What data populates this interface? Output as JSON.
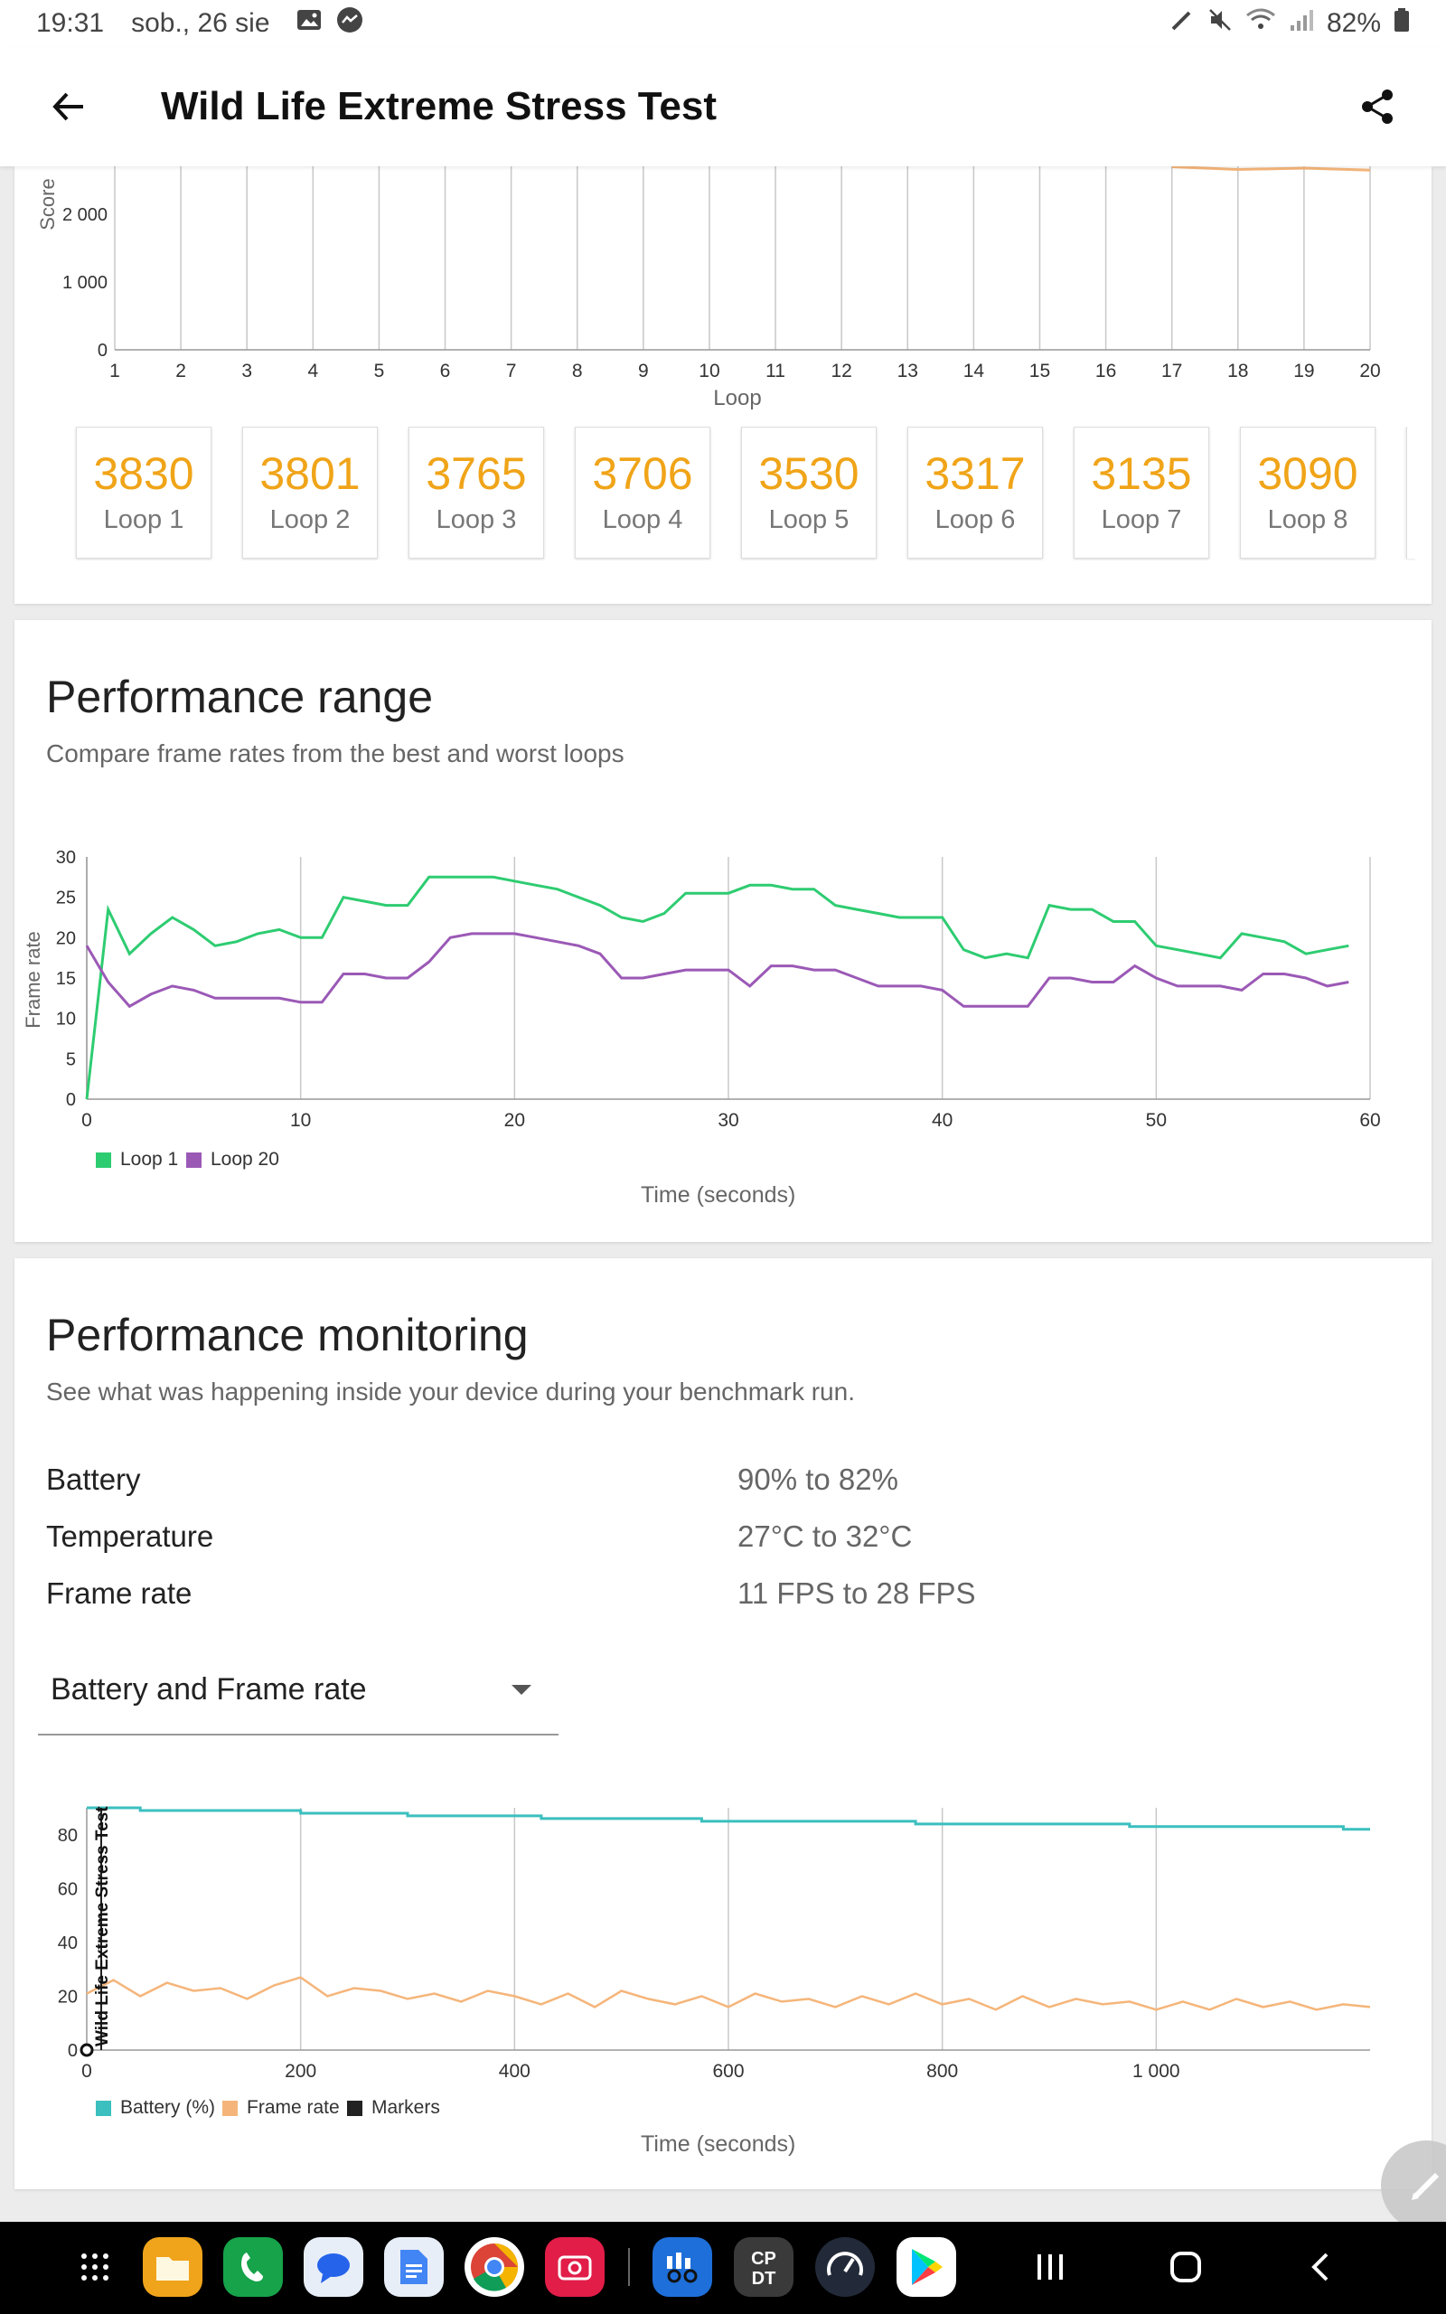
{
  "status_bar": {
    "time": "19:31",
    "date": "sob., 26 sie",
    "battery": "82%"
  },
  "app_bar": {
    "title": "Wild Life Extreme Stress Test"
  },
  "score_chart": {
    "y_ticks": [
      "0",
      "1 000",
      "2 000"
    ],
    "ylabel": "Score",
    "xlabel": "Loop",
    "x_ticks": [
      "1",
      "2",
      "3",
      "4",
      "5",
      "6",
      "7",
      "8",
      "9",
      "10",
      "11",
      "12",
      "13",
      "14",
      "15",
      "16",
      "17",
      "18",
      "19",
      "20"
    ]
  },
  "loops": [
    {
      "score": "3830",
      "label": "Loop 1"
    },
    {
      "score": "3801",
      "label": "Loop 2"
    },
    {
      "score": "3765",
      "label": "Loop 3"
    },
    {
      "score": "3706",
      "label": "Loop 4"
    },
    {
      "score": "3530",
      "label": "Loop 5"
    },
    {
      "score": "3317",
      "label": "Loop 6"
    },
    {
      "score": "3135",
      "label": "Loop 7"
    },
    {
      "score": "3090",
      "label": "Loop 8"
    }
  ],
  "performance_range": {
    "title": "Performance range",
    "subtitle": "Compare frame rates from the best and worst loops",
    "ylabel": "Frame rate",
    "xlabel": "Time (seconds)",
    "y_ticks": [
      "0",
      "5",
      "10",
      "15",
      "20",
      "25",
      "30"
    ],
    "x_ticks": [
      "0",
      "10",
      "20",
      "30",
      "40",
      "50",
      "60"
    ],
    "legend": [
      "Loop 1",
      "Loop 20"
    ]
  },
  "performance_monitoring": {
    "title": "Performance monitoring",
    "subtitle": "See what was happening inside your device during your benchmark run.",
    "rows": [
      {
        "label": "Battery",
        "value": "90% to 82%"
      },
      {
        "label": "Temperature",
        "value": "27°C to 32°C"
      },
      {
        "label": "Frame rate",
        "value": "11 FPS to 28 FPS"
      }
    ],
    "dropdown_value": "Battery and Frame rate",
    "chart": {
      "y_ticks": [
        "0",
        "20",
        "40",
        "60",
        "80"
      ],
      "x_ticks": [
        "0",
        "200",
        "400",
        "600",
        "800",
        "1 000"
      ],
      "marker_label": "Wild Life Extreme Stress Test",
      "legend": [
        "Battery (%)",
        "Frame rate",
        "Markers"
      ],
      "xlabel": "Time (seconds)"
    }
  },
  "colors": {
    "accent_orange": "#f0a418",
    "loop1": "#2ecc71",
    "loop20": "#9b59b6",
    "battery": "#3bbfbf",
    "framerate": "#f5b57a",
    "markers": "#222222"
  },
  "dock_apps": [
    "apps-grid-icon",
    "files-icon",
    "phone-icon",
    "messages-icon",
    "docs-icon",
    "chrome-icon",
    "camera-icon",
    "benchmark-icon",
    "cpu-dt-icon",
    "speedometer-icon",
    "play-store-icon"
  ],
  "chart_data": [
    {
      "type": "line",
      "title": "",
      "xlabel": "Loop",
      "ylabel": "Score",
      "x": [
        17,
        18,
        19,
        20
      ],
      "series": [
        {
          "values": [
            2700,
            2660,
            2680,
            2650
          ]
        }
      ],
      "ylim": [
        0,
        3000
      ]
    },
    {
      "type": "line",
      "title": "Performance range",
      "xlabel": "Time (seconds)",
      "ylabel": "Frame rate",
      "xlim": [
        0,
        60
      ],
      "ylim": [
        0,
        30
      ],
      "x": [
        0,
        1,
        2,
        3,
        4,
        5,
        6,
        7,
        8,
        9,
        10,
        11,
        12,
        13,
        14,
        15,
        16,
        17,
        18,
        19,
        20,
        21,
        22,
        23,
        24,
        25,
        26,
        27,
        28,
        29,
        30,
        31,
        32,
        33,
        34,
        35,
        36,
        37,
        38,
        39,
        40,
        41,
        42,
        43,
        44,
        45,
        46,
        47,
        48,
        49,
        50,
        51,
        52,
        53,
        54,
        55,
        56,
        57,
        58,
        59
      ],
      "series": [
        {
          "name": "Loop 1",
          "values": [
            0,
            23.5,
            18,
            20.5,
            22.5,
            21,
            19,
            19.5,
            20.5,
            21,
            20,
            20,
            25,
            24.5,
            24,
            24,
            27.5,
            27.5,
            27.5,
            27.5,
            27,
            26.5,
            26,
            25,
            24,
            22.5,
            22,
            23,
            25.5,
            25.5,
            25.5,
            26.5,
            26.5,
            26,
            26,
            24,
            23.5,
            23,
            22.5,
            22.5,
            22.5,
            18.5,
            17.5,
            18,
            17.5,
            24,
            23.5,
            23.5,
            22,
            22,
            19,
            18.5,
            18,
            17.5,
            20.5,
            20,
            19.5,
            18,
            18.5,
            19
          ]
        },
        {
          "name": "Loop 20",
          "values": [
            19,
            14.5,
            11.5,
            13,
            14,
            13.5,
            12.5,
            12.5,
            12.5,
            12.5,
            12,
            12,
            15.5,
            15.5,
            15,
            15,
            17,
            20,
            20.5,
            20.5,
            20.5,
            20,
            19.5,
            19,
            18,
            15,
            15,
            15.5,
            16,
            16,
            16,
            14,
            16.5,
            16.5,
            16,
            16,
            15,
            14,
            14,
            14,
            13.5,
            11.5,
            11.5,
            11.5,
            11.5,
            15,
            15,
            14.5,
            14.5,
            16.5,
            15,
            14,
            14,
            14,
            13.5,
            15.5,
            15.5,
            15,
            14,
            14.5
          ]
        }
      ]
    },
    {
      "type": "line",
      "title": "",
      "xlabel": "Time (seconds)",
      "xlim": [
        0,
        1200
      ],
      "ylim": [
        0,
        90
      ],
      "x": [
        0,
        25,
        50,
        75,
        100,
        125,
        150,
        175,
        200,
        225,
        250,
        275,
        300,
        325,
        350,
        375,
        400,
        425,
        450,
        475,
        500,
        525,
        550,
        575,
        600,
        625,
        650,
        675,
        700,
        725,
        750,
        775,
        800,
        825,
        850,
        875,
        900,
        925,
        950,
        975,
        1000,
        1025,
        1050,
        1075,
        1100,
        1125,
        1150,
        1175,
        1200
      ],
      "series": [
        {
          "name": "Battery (%)",
          "values": [
            90,
            90,
            89,
            89,
            89,
            89,
            89,
            89,
            88,
            88,
            88,
            88,
            87,
            87,
            87,
            87,
            87,
            86,
            86,
            86,
            86,
            86,
            86,
            85,
            85,
            85,
            85,
            85,
            85,
            85,
            85,
            84,
            84,
            84,
            84,
            84,
            84,
            84,
            84,
            83,
            83,
            83,
            83,
            83,
            83,
            83,
            83,
            82,
            82
          ]
        },
        {
          "name": "Frame rate",
          "values": [
            21,
            26,
            20,
            25,
            22,
            23,
            19,
            24,
            27,
            20,
            23,
            22,
            19,
            21,
            18,
            22,
            20,
            17,
            21,
            16,
            22,
            19,
            17,
            20,
            16,
            21,
            18,
            19,
            16,
            20,
            17,
            21,
            17,
            19,
            15,
            20,
            16,
            19,
            17,
            18,
            15,
            18,
            15,
            19,
            16,
            18,
            15,
            17,
            16
          ]
        }
      ],
      "markers": [
        {
          "x": 0,
          "label": "Wild Life Extreme Stress Test"
        }
      ]
    }
  ]
}
